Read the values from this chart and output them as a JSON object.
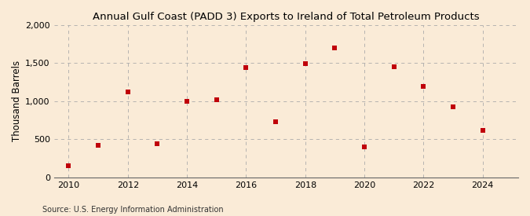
{
  "title": "Annual Gulf Coast (PADD 3) Exports to Ireland of Total Petroleum Products",
  "ylabel": "Thousand Barrels",
  "source": "Source: U.S. Energy Information Administration",
  "background_color": "#faebd7",
  "years": [
    2010,
    2011,
    2012,
    2013,
    2014,
    2015,
    2016,
    2017,
    2018,
    2019,
    2020,
    2021,
    2022,
    2023,
    2024
  ],
  "values": [
    150,
    420,
    1120,
    440,
    1000,
    1020,
    1440,
    730,
    1490,
    1700,
    400,
    1450,
    1190,
    930,
    620
  ],
  "marker_color": "#c0000a",
  "marker": "s",
  "marker_size": 18,
  "ylim": [
    0,
    2000
  ],
  "yticks": [
    0,
    500,
    1000,
    1500,
    2000
  ],
  "ytick_labels": [
    "0",
    "500",
    "1,000",
    "1,500",
    "2,000"
  ],
  "xlim": [
    2009.5,
    2025.2
  ],
  "xticks": [
    2010,
    2012,
    2014,
    2016,
    2018,
    2020,
    2022,
    2024
  ],
  "grid_color": "#aaaaaa",
  "title_fontsize": 9.5,
  "axis_label_fontsize": 8.5,
  "tick_fontsize": 8,
  "source_fontsize": 7
}
